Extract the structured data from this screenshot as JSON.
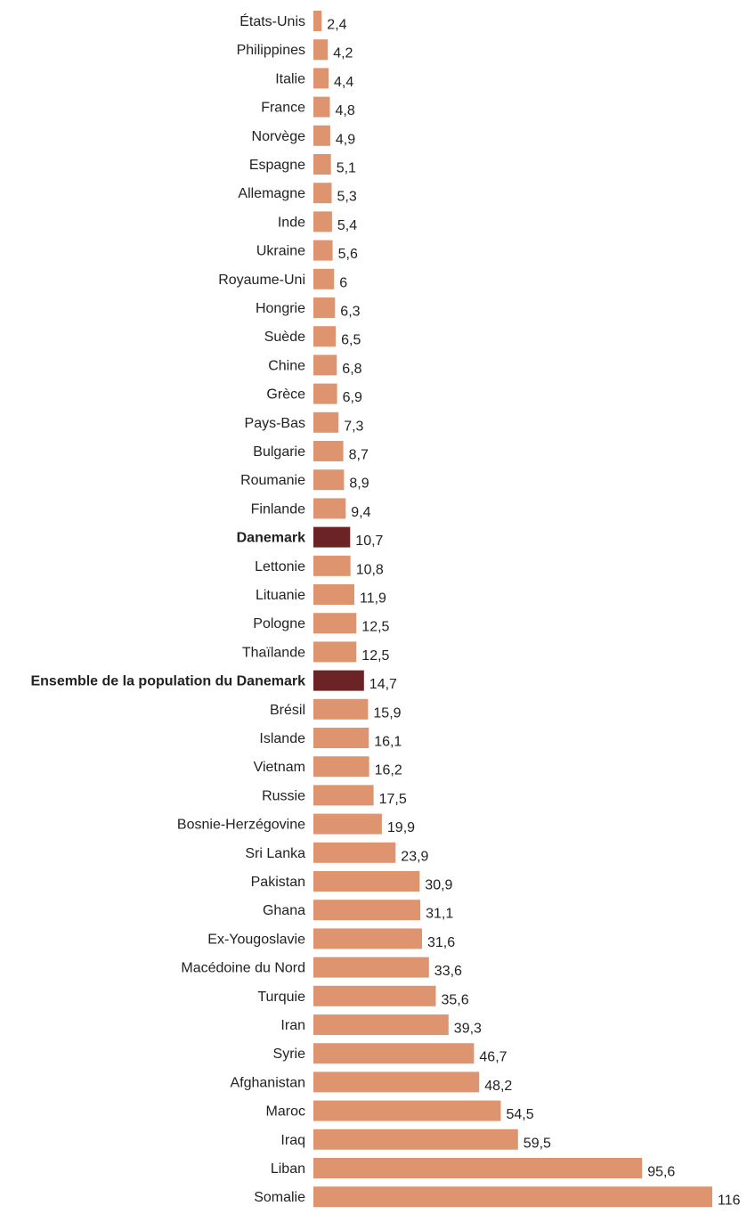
{
  "chart_data": {
    "type": "bar",
    "orientation": "horizontal",
    "title": "",
    "xlabel": "",
    "ylabel": "",
    "grid": false,
    "legend": null,
    "xlim": [
      0,
      116
    ],
    "colors": {
      "default": "#df9470",
      "highlight": "#6c2326",
      "text": "#222222"
    },
    "categories": [
      "États-Unis",
      "Philippines",
      "Italie",
      "France",
      "Norvège",
      "Espagne",
      "Allemagne",
      "Inde",
      "Ukraine",
      "Royaume-Uni",
      "Hongrie",
      "Suède",
      "Chine",
      "Grèce",
      "Pays-Bas",
      "Bulgarie",
      "Roumanie",
      "Finlande",
      "Danemark",
      "Lettonie",
      "Lituanie",
      "Pologne",
      "Thaïlande",
      "Ensemble de la population du Danemark",
      "Brésil",
      "Islande",
      "Vietnam",
      "Russie",
      "Bosnie-Herzégovine",
      "Sri Lanka",
      "Pakistan",
      "Ghana",
      "Ex-Yougoslavie",
      "Macédoine du Nord",
      "Turquie",
      "Iran",
      "Syrie",
      "Afghanistan",
      "Maroc",
      "Iraq",
      "Liban",
      "Somalie"
    ],
    "values": [
      2.4,
      4.2,
      4.4,
      4.8,
      4.9,
      5.1,
      5.3,
      5.4,
      5.6,
      6,
      6.3,
      6.5,
      6.8,
      6.9,
      7.3,
      8.7,
      8.9,
      9.4,
      10.7,
      10.8,
      11.9,
      12.5,
      12.5,
      14.7,
      15.9,
      16.1,
      16.2,
      17.5,
      19.9,
      23.9,
      30.9,
      31.1,
      31.6,
      33.6,
      35.6,
      39.3,
      46.7,
      48.2,
      54.5,
      59.5,
      95.6,
      116
    ],
    "value_labels": [
      "2,4",
      "4,2",
      "4,4",
      "4,8",
      "4,9",
      "5,1",
      "5,3",
      "5,4",
      "5,6",
      "6",
      "6,3",
      "6,5",
      "6,8",
      "6,9",
      "7,3",
      "8,7",
      "8,9",
      "9,4",
      "10,7",
      "10,8",
      "11,9",
      "12,5",
      "12,5",
      "14,7",
      "15,9",
      "16,1",
      "16,2",
      "17,5",
      "19,9",
      "23,9",
      "30,9",
      "31,1",
      "31,6",
      "33,6",
      "35,6",
      "39,3",
      "46,7",
      "48,2",
      "54,5",
      "59,5",
      "95,6",
      "116"
    ],
    "highlighted": [
      "Danemark",
      "Ensemble de la population du Danemark"
    ]
  }
}
